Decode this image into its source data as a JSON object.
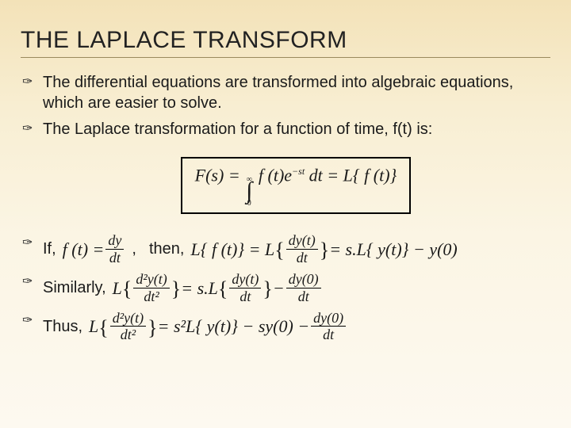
{
  "colors": {
    "bg_top": "#f3e2b8",
    "bg_bottom": "#fdf9f0",
    "rule": "#9a8a5c",
    "text": "#1a1a1a",
    "box_border": "#000000"
  },
  "typography": {
    "title_font": "Arial",
    "title_size_pt": 22,
    "title_weight": "400",
    "body_font": "Arial",
    "body_size_pt": 15,
    "math_font": "Times New Roman",
    "math_size_pt": 16
  },
  "title": "THE LAPLACE TRANSFORM",
  "bullets": {
    "b1": "The differential equations are transformed into algebraic equations, which are easier to solve.",
    "b2": "The Laplace transformation for a function of time, f(t) is:",
    "if": "If,",
    "comma": ",",
    "then": "then,",
    "similarly": "Similarly,",
    "thus": "Thus,"
  },
  "math": {
    "box_lhs": "F(s) = ",
    "int_lower": "0",
    "int_upper": "∞",
    "box_integrand": "f (t)e",
    "box_exp": "−st",
    "box_dt": "dt = L{ f (t)}",
    "line3_f": "f (t) = ",
    "dy": "dy",
    "dt": "dt",
    "line3_rhs_a": "L{ f (t)} = L",
    "dy_t": "dy(t)",
    "eq_sl": " = s.L{ y(t)} − y(0)",
    "line4_L": "L",
    "d2y": "d²y(t)",
    "dt2": "dt²",
    "line4_mid": " = s.L",
    "minus": " − ",
    "dy0": "dy(0)",
    "line5_L": "L",
    "line5_rhs": " = s²L{ y(t)} − sy(0) − "
  }
}
